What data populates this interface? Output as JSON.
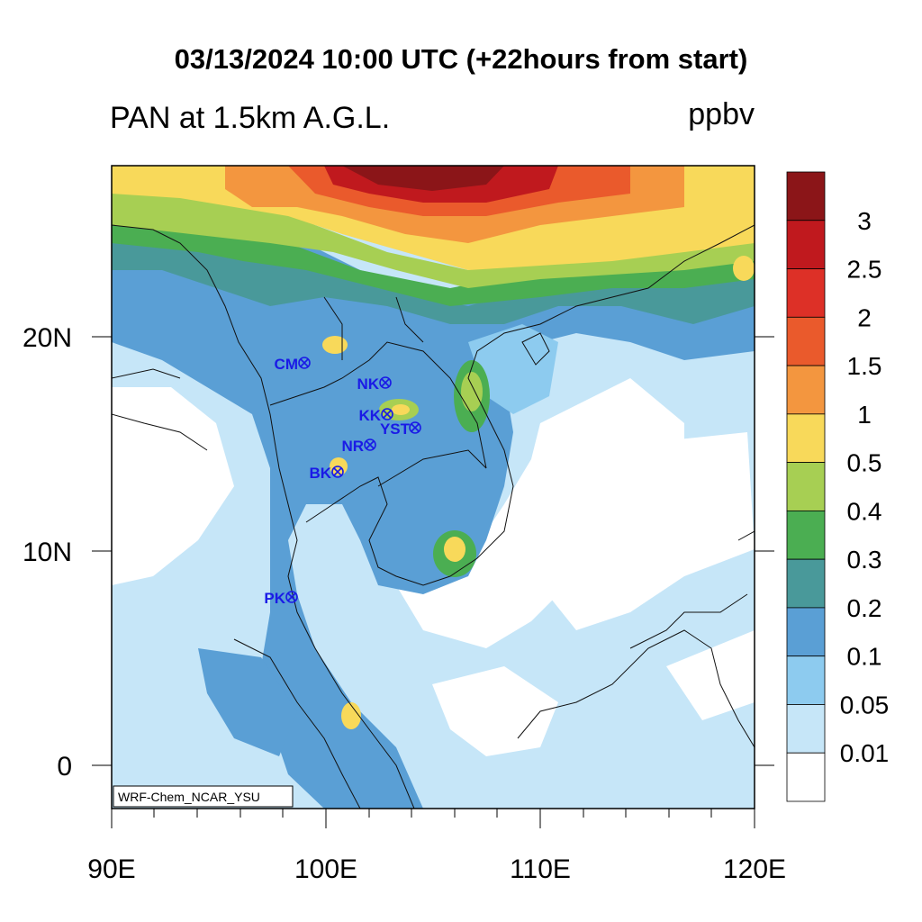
{
  "title": "03/13/2024 10:00 UTC (+22hours from start)",
  "left_string": "PAN at 1.5km A.G.L.",
  "right_string": "ppbv",
  "model_label": "WRF-Chem_NCAR_YSU",
  "x_ticks": [
    "90E",
    "100E",
    "110E",
    "120E"
  ],
  "y_ticks": [
    "20N",
    "10N",
    "0"
  ],
  "colorbar": {
    "labels": [
      "3",
      "2.5",
      "2",
      "1.5",
      "1",
      "0.5",
      "0.4",
      "0.3",
      "0.2",
      "0.1",
      "0.05",
      "0.01"
    ],
    "colors": [
      "#8b1518",
      "#c0191e",
      "#dd3027",
      "#ea5a2c",
      "#f3963f",
      "#f8d95a",
      "#a7cf53",
      "#4bae52",
      "#49999a",
      "#5a9fd5",
      "#8dcbef",
      "#c6e6f8",
      "#ffffff"
    ]
  },
  "stations": [
    {
      "name": "CM"
    },
    {
      "name": "NK"
    },
    {
      "name": "KK"
    },
    {
      "name": "YST"
    },
    {
      "name": "NR"
    },
    {
      "name": "BK"
    },
    {
      "name": "PK"
    }
  ]
}
